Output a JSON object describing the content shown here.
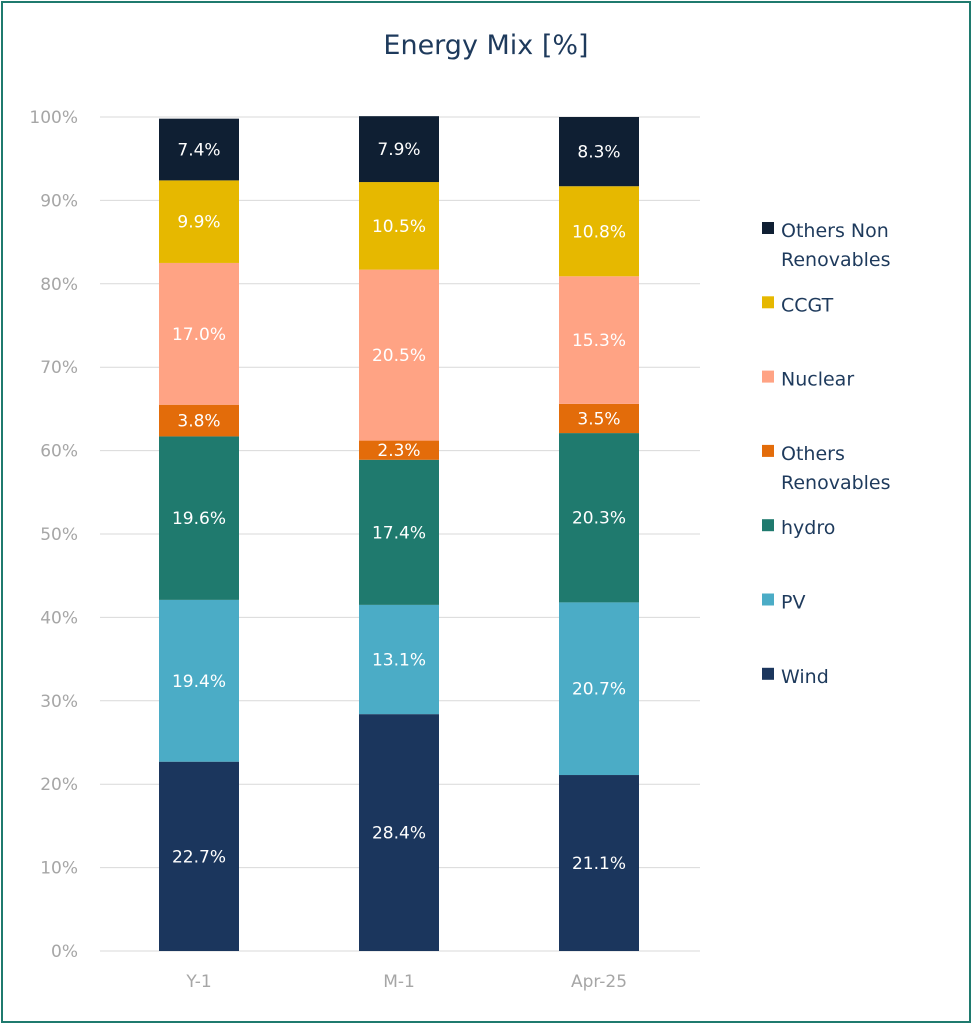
{
  "chart_data": {
    "type": "bar",
    "stacked": true,
    "title": "Energy Mix [%]",
    "xlabel": "",
    "ylabel": "",
    "ylim": [
      0,
      100
    ],
    "y_ticks": [
      "0%",
      "10%",
      "20%",
      "30%",
      "40%",
      "50%",
      "60%",
      "70%",
      "80%",
      "90%",
      "100%"
    ],
    "categories": [
      "Y-1",
      "M-1",
      "Apr-25"
    ],
    "legend_position": "right",
    "series": [
      {
        "name": "Wind",
        "color": "#1b365d",
        "values": [
          22.7,
          28.4,
          21.1
        ],
        "labels": [
          "22.7%",
          "28.4%",
          "21.1%"
        ]
      },
      {
        "name": "PV",
        "color": "#4bacc6",
        "values": [
          19.4,
          13.1,
          20.7
        ],
        "labels": [
          "19.4%",
          "13.1%",
          "20.7%"
        ]
      },
      {
        "name": "hydro",
        "color": "#1f7a6e",
        "values": [
          19.6,
          17.4,
          20.3
        ],
        "labels": [
          "19.6%",
          "17.4%",
          "20.3%"
        ]
      },
      {
        "name": "Others Renovables",
        "color": "#e36c0a",
        "values": [
          3.8,
          2.3,
          3.5
        ],
        "labels": [
          "3.8%",
          "2.3%",
          "3.5%"
        ]
      },
      {
        "name": "Nuclear",
        "color": "#ffa384",
        "values": [
          17.0,
          20.5,
          15.3
        ],
        "labels": [
          "17.0%",
          "20.5%",
          "15.3%"
        ]
      },
      {
        "name": "CCGT",
        "color": "#e6b800",
        "values": [
          9.9,
          10.5,
          10.8
        ],
        "labels": [
          "9.9%",
          "10.5%",
          "10.8%"
        ]
      },
      {
        "name": "Others Non Renovables",
        "color": "#0f1f33",
        "values": [
          7.4,
          7.9,
          8.3
        ],
        "labels": [
          "7.4%",
          "7.9%",
          "8.3%"
        ]
      }
    ],
    "legend_order": [
      "Others Non Renovables",
      "CCGT",
      "Nuclear",
      "Others Renovables",
      "hydro",
      "PV",
      "Wind"
    ],
    "legend_lines": {
      "Others Non Renovables": [
        "Others Non",
        "Renovables"
      ],
      "Others Renovables": [
        "Others",
        "Renovables"
      ]
    }
  }
}
